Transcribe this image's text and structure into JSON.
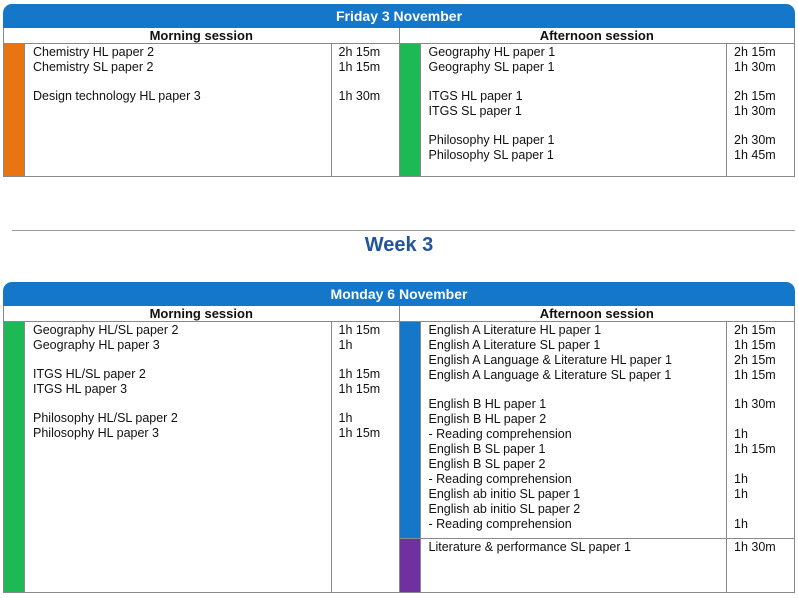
{
  "friday": {
    "header": "Friday 3 November",
    "morning": {
      "title": "Morning session",
      "groups": [
        {
          "color": "#e87511",
          "rows": [
            {
              "exam": "Chemistry HL paper 2",
              "duration": "2h 15m",
              "gap": false
            },
            {
              "exam": "Chemistry SL paper 2",
              "duration": "1h 15m",
              "gap": false
            },
            {
              "exam": "Design technology HL paper 3",
              "duration": "1h 30m",
              "gap": true
            }
          ]
        }
      ]
    },
    "afternoon": {
      "title": "Afternoon session",
      "groups": [
        {
          "color": "#1db954",
          "rows": [
            {
              "exam": "Geography HL paper 1",
              "duration": "2h 15m",
              "gap": false
            },
            {
              "exam": "Geography SL paper 1",
              "duration": "1h 30m",
              "gap": false
            },
            {
              "exam": "ITGS HL paper 1",
              "duration": "2h 15m",
              "gap": true
            },
            {
              "exam": "ITGS SL paper 1",
              "duration": "1h 30m",
              "gap": false
            },
            {
              "exam": "Philosophy HL paper 1",
              "duration": "2h 30m",
              "gap": true
            },
            {
              "exam": "Philosophy SL paper 1",
              "duration": "1h 45m",
              "gap": false
            }
          ]
        }
      ]
    }
  },
  "week_title": "Week 3",
  "monday": {
    "header": "Monday 6 November",
    "morning": {
      "title": "Morning session",
      "groups": [
        {
          "color": "#1db954",
          "rows": [
            {
              "exam": "Geography HL/SL paper 2",
              "duration": "1h 15m",
              "gap": false
            },
            {
              "exam": "Geography HL paper 3",
              "duration": "1h",
              "gap": false
            },
            {
              "exam": "ITGS HL/SL paper 2",
              "duration": "1h 15m",
              "gap": true
            },
            {
              "exam": "ITGS HL paper 3",
              "duration": "1h 15m",
              "gap": false
            },
            {
              "exam": "Philosophy HL/SL paper 2",
              "duration": "1h",
              "gap": true
            },
            {
              "exam": "Philosophy HL paper 3",
              "duration": "1h 15m",
              "gap": false
            }
          ]
        }
      ]
    },
    "afternoon": {
      "title": "Afternoon session",
      "groups": [
        {
          "color": "#1577c9",
          "rows": [
            {
              "exam": "English A Literature HL paper 1",
              "duration": "2h 15m",
              "gap": false
            },
            {
              "exam": "English A Literature SL paper 1",
              "duration": "1h 15m",
              "gap": false
            },
            {
              "exam": "English A Language & Literature HL paper 1",
              "duration": "2h 15m",
              "gap": false
            },
            {
              "exam": "English A Language & Literature SL paper 1",
              "duration": "1h 15m",
              "gap": false
            },
            {
              "exam": "English B HL paper 1",
              "duration": "1h 30m",
              "gap": true
            },
            {
              "exam": "English B HL paper 2",
              "duration": "",
              "gap": false
            },
            {
              "exam": "- Reading comprehension",
              "duration": "1h",
              "gap": false
            },
            {
              "exam": "English B SL paper 1",
              "duration": "1h 15m",
              "gap": false
            },
            {
              "exam": "English B SL paper 2",
              "duration": "",
              "gap": false
            },
            {
              "exam": "- Reading comprehension",
              "duration": "1h",
              "gap": false
            },
            {
              "exam": "English ab initio SL paper 1",
              "duration": "1h",
              "gap": false
            },
            {
              "exam": "English ab initio SL paper 2",
              "duration": "",
              "gap": false
            },
            {
              "exam": "- Reading comprehension",
              "duration": "1h",
              "gap": false
            }
          ]
        },
        {
          "color": "#7030a0",
          "rows": [
            {
              "exam": "Literature & performance SL paper 1",
              "duration": "1h 30m",
              "gap": false
            }
          ]
        }
      ]
    }
  }
}
